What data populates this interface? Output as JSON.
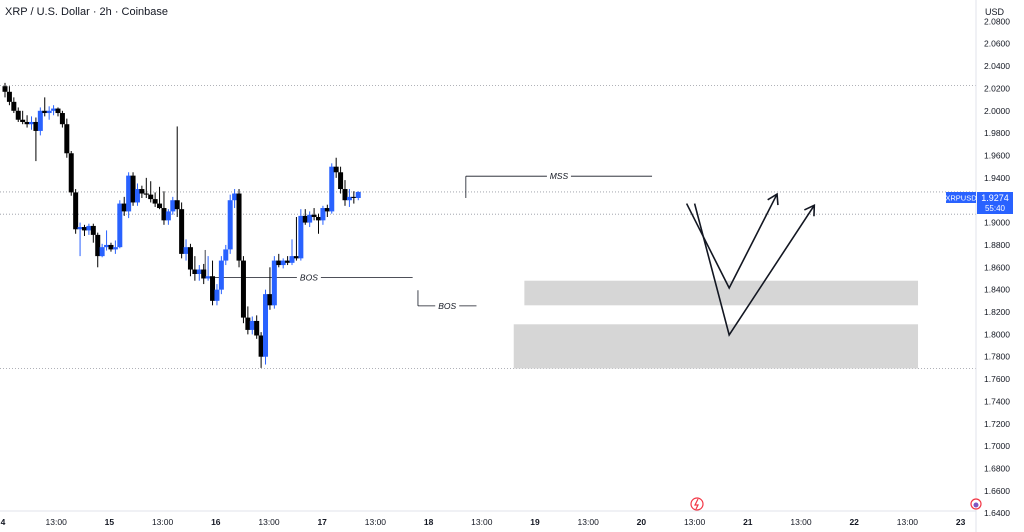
{
  "header": {
    "symbol_title": "XRP / U.S. Dollar · 2h · Coinbase",
    "currency": "USD"
  },
  "price_tag": {
    "symbol": "XRPUSD",
    "price": "1.9274",
    "countdown": "55:40"
  },
  "colors": {
    "bull": "#2962ff",
    "bear": "#000000",
    "zone": "#d6d6d6",
    "line": "#131722",
    "grid_dot": "#9598a1",
    "tag": "#2962ff"
  },
  "chart_data": {
    "type": "candlestick",
    "symbol": "XRPUSD",
    "timeframe": "2h",
    "exchange": "Coinbase",
    "ylim": [
      1.625,
      2.1
    ],
    "y_ticks": [
      "2.0800",
      "2.0600",
      "2.0400",
      "2.0200",
      "2.0000",
      "1.9800",
      "1.9600",
      "1.9400",
      "1.9200",
      "1.9000",
      "1.8800",
      "1.8600",
      "1.8400",
      "1.8200",
      "1.8000",
      "1.7800",
      "1.7600",
      "1.7400",
      "1.7200",
      "1.7000",
      "1.6800",
      "1.6600",
      "1.6400"
    ],
    "x_ticks": [
      "4",
      "13:00",
      "15",
      "13:00",
      "16",
      "13:00",
      "17",
      "13:00",
      "18",
      "13:00",
      "19",
      "13:00",
      "20",
      "13:00",
      "21",
      "13:00",
      "22",
      "13:00",
      "23"
    ],
    "x_range": [
      0,
      18.1
    ],
    "candle_start": 0.0,
    "candle_step": 0.083,
    "candles": [
      {
        "o": 2.022,
        "h": 2.025,
        "l": 2.012,
        "c": 2.017
      },
      {
        "o": 2.017,
        "h": 2.022,
        "l": 2.005,
        "c": 2.008
      },
      {
        "o": 2.008,
        "h": 2.012,
        "l": 1.998,
        "c": 2.0
      },
      {
        "o": 2.0,
        "h": 2.003,
        "l": 1.99,
        "c": 1.992
      },
      {
        "o": 1.992,
        "h": 2.0,
        "l": 1.988,
        "c": 1.99
      },
      {
        "o": 1.99,
        "h": 1.996,
        "l": 1.985,
        "c": 1.988
      },
      {
        "o": 1.988,
        "h": 1.995,
        "l": 1.983,
        "c": 1.99
      },
      {
        "o": 1.99,
        "h": 1.994,
        "l": 1.955,
        "c": 1.982
      },
      {
        "o": 1.982,
        "h": 2.003,
        "l": 1.978,
        "c": 2.0
      },
      {
        "o": 2.0,
        "h": 2.012,
        "l": 1.995,
        "c": 1.998
      },
      {
        "o": 1.998,
        "h": 2.004,
        "l": 1.992,
        "c": 2.0
      },
      {
        "o": 2.0,
        "h": 2.005,
        "l": 1.996,
        "c": 2.002
      },
      {
        "o": 2.002,
        "h": 2.003,
        "l": 1.995,
        "c": 1.998
      },
      {
        "o": 1.998,
        "h": 2.0,
        "l": 1.985,
        "c": 1.988
      },
      {
        "o": 1.988,
        "h": 1.993,
        "l": 1.958,
        "c": 1.962
      },
      {
        "o": 1.962,
        "h": 1.964,
        "l": 1.924,
        "c": 1.927
      },
      {
        "o": 1.927,
        "h": 1.93,
        "l": 1.89,
        "c": 1.894
      },
      {
        "o": 1.894,
        "h": 1.9,
        "l": 1.87,
        "c": 1.896
      },
      {
        "o": 1.896,
        "h": 1.898,
        "l": 1.888,
        "c": 1.893
      },
      {
        "o": 1.893,
        "h": 1.899,
        "l": 1.889,
        "c": 1.897
      },
      {
        "o": 1.897,
        "h": 1.899,
        "l": 1.882,
        "c": 1.889
      },
      {
        "o": 1.889,
        "h": 1.891,
        "l": 1.86,
        "c": 1.87
      },
      {
        "o": 1.87,
        "h": 1.881,
        "l": 1.869,
        "c": 1.878
      },
      {
        "o": 1.878,
        "h": 1.893,
        "l": 1.875,
        "c": 1.88
      },
      {
        "o": 1.88,
        "h": 1.882,
        "l": 1.874,
        "c": 1.876
      },
      {
        "o": 1.876,
        "h": 1.884,
        "l": 1.872,
        "c": 1.878
      },
      {
        "o": 1.878,
        "h": 1.92,
        "l": 1.877,
        "c": 1.917
      },
      {
        "o": 1.917,
        "h": 1.923,
        "l": 1.906,
        "c": 1.91
      },
      {
        "o": 1.91,
        "h": 1.945,
        "l": 1.904,
        "c": 1.942
      },
      {
        "o": 1.942,
        "h": 1.945,
        "l": 1.915,
        "c": 1.918
      },
      {
        "o": 1.918,
        "h": 1.935,
        "l": 1.915,
        "c": 1.93
      },
      {
        "o": 1.93,
        "h": 1.933,
        "l": 1.922,
        "c": 1.926
      },
      {
        "o": 1.926,
        "h": 1.94,
        "l": 1.922,
        "c": 1.925
      },
      {
        "o": 1.925,
        "h": 1.937,
        "l": 1.918,
        "c": 1.921
      },
      {
        "o": 1.921,
        "h": 1.927,
        "l": 1.914,
        "c": 1.917
      },
      {
        "o": 1.917,
        "h": 1.932,
        "l": 1.912,
        "c": 1.913
      },
      {
        "o": 1.913,
        "h": 1.928,
        "l": 1.898,
        "c": 1.902
      },
      {
        "o": 1.902,
        "h": 1.912,
        "l": 1.898,
        "c": 1.91
      },
      {
        "o": 1.91,
        "h": 1.923,
        "l": 1.907,
        "c": 1.92
      },
      {
        "o": 1.92,
        "h": 1.986,
        "l": 1.905,
        "c": 1.912
      },
      {
        "o": 1.912,
        "h": 1.918,
        "l": 1.868,
        "c": 1.872
      },
      {
        "o": 1.872,
        "h": 1.885,
        "l": 1.866,
        "c": 1.878
      },
      {
        "o": 1.878,
        "h": 1.881,
        "l": 1.852,
        "c": 1.858
      },
      {
        "o": 1.858,
        "h": 1.87,
        "l": 1.848,
        "c": 1.854
      },
      {
        "o": 1.854,
        "h": 1.862,
        "l": 1.848,
        "c": 1.858
      },
      {
        "o": 1.858,
        "h": 1.863,
        "l": 1.845,
        "c": 1.85
      },
      {
        "o": 1.85,
        "h": 1.87,
        "l": 1.848,
        "c": 1.852
      },
      {
        "o": 1.852,
        "h": 1.866,
        "l": 1.826,
        "c": 1.83
      },
      {
        "o": 1.83,
        "h": 1.845,
        "l": 1.826,
        "c": 1.84
      },
      {
        "o": 1.84,
        "h": 1.87,
        "l": 1.836,
        "c": 1.866
      },
      {
        "o": 1.866,
        "h": 1.88,
        "l": 1.862,
        "c": 1.876
      },
      {
        "o": 1.876,
        "h": 1.925,
        "l": 1.872,
        "c": 1.92
      },
      {
        "o": 1.92,
        "h": 1.93,
        "l": 1.913,
        "c": 1.926
      },
      {
        "o": 1.926,
        "h": 1.93,
        "l": 1.86,
        "c": 1.866
      },
      {
        "o": 1.866,
        "h": 1.87,
        "l": 1.81,
        "c": 1.815
      },
      {
        "o": 1.815,
        "h": 1.825,
        "l": 1.8,
        "c": 1.804
      },
      {
        "o": 1.804,
        "h": 1.816,
        "l": 1.8,
        "c": 1.812
      },
      {
        "o": 1.812,
        "h": 1.817,
        "l": 1.796,
        "c": 1.799
      },
      {
        "o": 1.799,
        "h": 1.802,
        "l": 1.77,
        "c": 1.78
      },
      {
        "o": 1.78,
        "h": 1.84,
        "l": 1.773,
        "c": 1.836
      },
      {
        "o": 1.836,
        "h": 1.86,
        "l": 1.822,
        "c": 1.826
      },
      {
        "o": 1.826,
        "h": 1.87,
        "l": 1.823,
        "c": 1.866
      },
      {
        "o": 1.866,
        "h": 1.872,
        "l": 1.86,
        "c": 1.862
      },
      {
        "o": 1.862,
        "h": 1.868,
        "l": 1.859,
        "c": 1.866
      },
      {
        "o": 1.866,
        "h": 1.87,
        "l": 1.862,
        "c": 1.864
      },
      {
        "o": 1.864,
        "h": 1.885,
        "l": 1.862,
        "c": 1.87
      },
      {
        "o": 1.87,
        "h": 1.905,
        "l": 1.866,
        "c": 1.868
      },
      {
        "o": 1.868,
        "h": 1.912,
        "l": 1.866,
        "c": 1.906
      },
      {
        "o": 1.906,
        "h": 1.912,
        "l": 1.898,
        "c": 1.9
      },
      {
        "o": 1.9,
        "h": 1.91,
        "l": 1.896,
        "c": 1.907
      },
      {
        "o": 1.907,
        "h": 1.913,
        "l": 1.902,
        "c": 1.905
      },
      {
        "o": 1.905,
        "h": 1.908,
        "l": 1.89,
        "c": 1.902
      },
      {
        "o": 1.902,
        "h": 1.915,
        "l": 1.898,
        "c": 1.913
      },
      {
        "o": 1.913,
        "h": 1.916,
        "l": 1.905,
        "c": 1.91
      },
      {
        "o": 1.91,
        "h": 1.953,
        "l": 1.908,
        "c": 1.95
      },
      {
        "o": 1.95,
        "h": 1.958,
        "l": 1.94,
        "c": 1.945
      },
      {
        "o": 1.945,
        "h": 1.95,
        "l": 1.926,
        "c": 1.93
      },
      {
        "o": 1.93,
        "h": 1.938,
        "l": 1.915,
        "c": 1.92
      },
      {
        "o": 1.92,
        "h": 1.93,
        "l": 1.914,
        "c": 1.923
      },
      {
        "o": 1.923,
        "h": 1.928,
        "l": 1.917,
        "c": 1.922
      },
      {
        "o": 1.922,
        "h": 1.928,
        "l": 1.92,
        "c": 1.9274
      }
    ],
    "horizontal_levels": [
      2.0225,
      1.9274,
      1.9075,
      1.7695
    ],
    "zones": [
      {
        "x_from": 9.8,
        "x_to": 17.2,
        "y_from": 1.826,
        "y_to": 1.848
      },
      {
        "x_from": 9.6,
        "x_to": 17.2,
        "y_from": 1.7695,
        "y_to": 1.809
      }
    ],
    "annotations": [
      {
        "label": "BOS",
        "x_from": 3.8,
        "x_to": 7.7,
        "y": 1.851
      },
      {
        "label": "BOS",
        "x_from": 7.8,
        "x_to": 8.9,
        "y": 1.8255
      },
      {
        "label": "MSS",
        "x_from": 8.7,
        "x_to": 12.2,
        "y": 1.9415
      }
    ],
    "projection_paths": [
      [
        [
          12.85,
          1.917
        ],
        [
          13.65,
          1.8415
        ],
        [
          14.55,
          1.9255
        ]
      ],
      [
        [
          13.0,
          1.917
        ],
        [
          13.65,
          1.7995
        ],
        [
          15.25,
          1.9155
        ]
      ]
    ]
  }
}
